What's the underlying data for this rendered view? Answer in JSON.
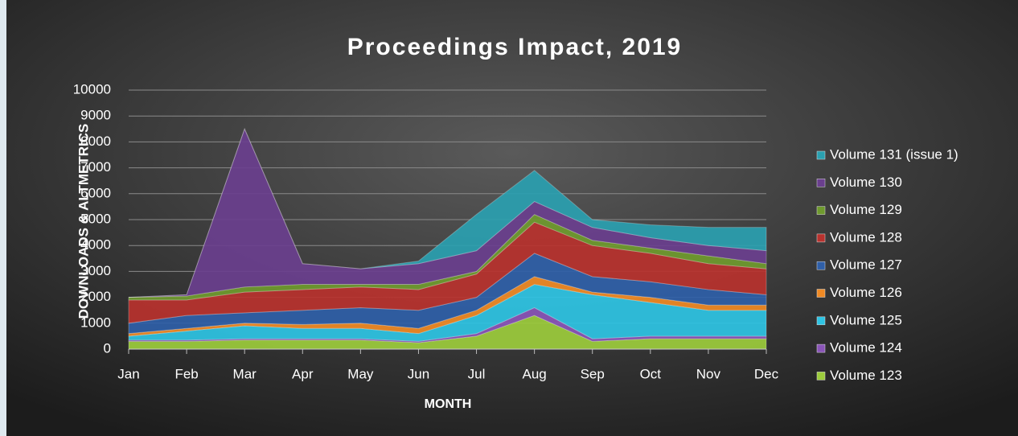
{
  "chart_data": {
    "type": "stacked_area",
    "title": "Proceedings Impact, 2019",
    "x_label": "MONTH",
    "y_label": "DOWNLOADS & ALTMETRICS",
    "categories": [
      "Jan",
      "Feb",
      "Mar",
      "Apr",
      "May",
      "Jun",
      "Jul",
      "Aug",
      "Sep",
      "Oct",
      "Nov",
      "Dec"
    ],
    "ylim": [
      0,
      10000
    ],
    "yticks": [
      0,
      1000,
      2000,
      3000,
      4000,
      5000,
      6000,
      7000,
      8000,
      9000,
      10000
    ],
    "grid": true,
    "series": [
      {
        "name": "Volume 123",
        "color": "#9ccc3c",
        "values": [
          300,
          300,
          350,
          350,
          350,
          250,
          500,
          1300,
          300,
          400,
          400,
          400
        ]
      },
      {
        "name": "Volume 124",
        "color": "#8a55b8",
        "values": [
          50,
          50,
          50,
          50,
          50,
          50,
          100,
          300,
          100,
          100,
          100,
          100
        ]
      },
      {
        "name": "Volume 125",
        "color": "#2ec4e4",
        "values": [
          150,
          350,
          500,
          400,
          400,
          300,
          700,
          900,
          1700,
          1300,
          1000,
          1000
        ]
      },
      {
        "name": "Volume 126",
        "color": "#f08a24",
        "values": [
          100,
          100,
          100,
          150,
          200,
          200,
          200,
          300,
          100,
          200,
          200,
          200
        ]
      },
      {
        "name": "Volume 127",
        "color": "#2f5fa8",
        "values": [
          400,
          500,
          400,
          550,
          600,
          700,
          500,
          900,
          600,
          600,
          600,
          400
        ]
      },
      {
        "name": "Volume 128",
        "color": "#b8322e",
        "values": [
          900,
          600,
          800,
          800,
          800,
          800,
          900,
          1200,
          1200,
          1100,
          1000,
          1000
        ]
      },
      {
        "name": "Volume 129",
        "color": "#6f9a2e",
        "values": [
          100,
          150,
          200,
          200,
          100,
          200,
          100,
          300,
          200,
          200,
          300,
          200
        ]
      },
      {
        "name": "Volume 130",
        "color": "#6a3f8e",
        "values": [
          0,
          50,
          6100,
          800,
          600,
          800,
          800,
          500,
          500,
          400,
          400,
          500
        ]
      },
      {
        "name": "Volume 131 (issue 1)",
        "color": "#2aa0b0",
        "values": [
          0,
          0,
          0,
          0,
          0,
          100,
          1400,
          1200,
          300,
          500,
          700,
          900
        ]
      }
    ]
  }
}
